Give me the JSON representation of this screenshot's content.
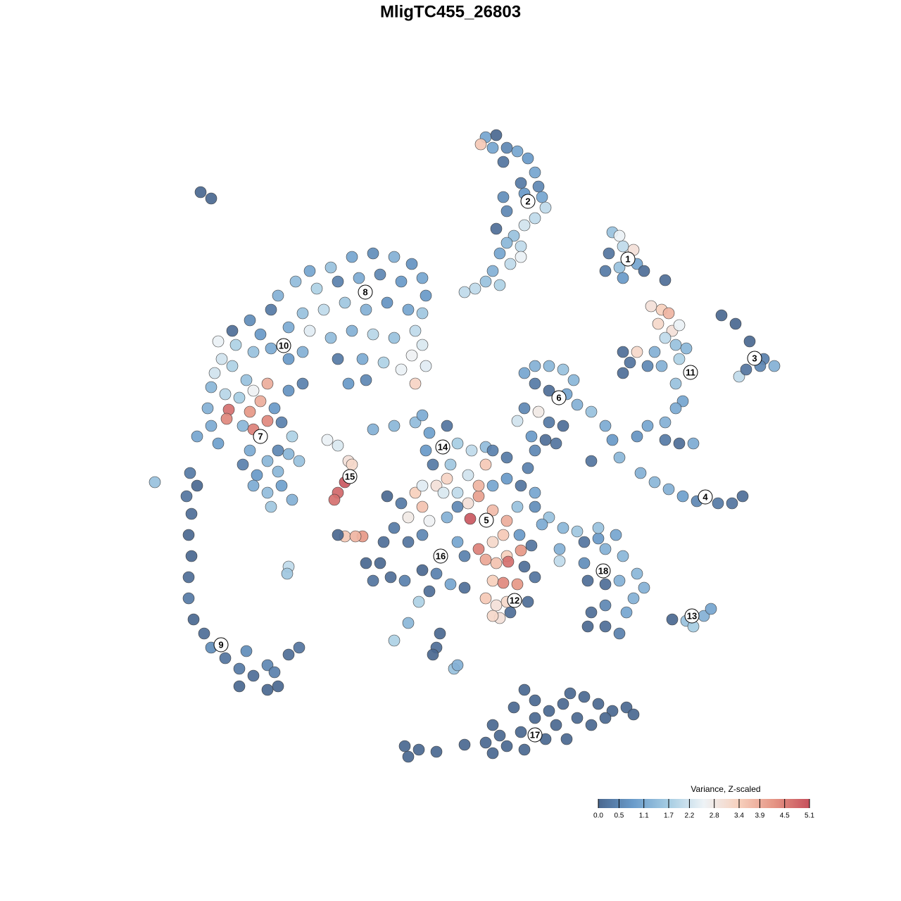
{
  "chart_data": {
    "type": "scatter",
    "title": "MligTC455_26803",
    "x": [
      69,
      70.5,
      70,
      68.3,
      72,
      73.5,
      75,
      76,
      76.5,
      74,
      74.5,
      77,
      77.5,
      76,
      74.5,
      73,
      74,
      72,
      71,
      72.5,
      70,
      69,
      71,
      67.5,
      66,
      72,
      71.5,
      74,
      71.5,
      70.5,
      87,
      88,
      88.5,
      90,
      86.5,
      88,
      90.5,
      86,
      88.5,
      91.5,
      94.5,
      92.5,
      94,
      95,
      93.5,
      95.5,
      96.5,
      94.5,
      96,
      97.5,
      93,
      90.5,
      88.5,
      89.5,
      92,
      94,
      96.5,
      96,
      97,
      96,
      94.5,
      92,
      90.5,
      94.5,
      96.5,
      98.5,
      88.5,
      102.5,
      104.5,
      106.5,
      108.5,
      110,
      105,
      106,
      108,
      74.5,
      76,
      78,
      80,
      81.5,
      76,
      78,
      80.5,
      82,
      84,
      76.5,
      74.5,
      73.5,
      78,
      80,
      77.5,
      75.5,
      79,
      76,
      75,
      86,
      87,
      88,
      84,
      91,
      93,
      95,
      97,
      99,
      102,
      104,
      105.5,
      47,
      50,
      53,
      56,
      58.5,
      60,
      60.5,
      60,
      44,
      42,
      39.5,
      45,
      48,
      51,
      54,
      57,
      46,
      49,
      52,
      55,
      58,
      43,
      41,
      38.5,
      35.5,
      37,
      44,
      47,
      50,
      53,
      56,
      59,
      60,
      58.5,
      60.5,
      57,
      59,
      54.5,
      51.5,
      48,
      49.5,
      52,
      43,
      41,
      33,
      31,
      33.5,
      36,
      38.5,
      31.5,
      30.5,
      33,
      35,
      30,
      32,
      34,
      36,
      37,
      35.5,
      38,
      32.5,
      32.2,
      38,
      29.5,
      30,
      28,
      31,
      34.5,
      36,
      39,
      40,
      39.5,
      35.5,
      38,
      41,
      42.5,
      34.5,
      36.5,
      39.5,
      36,
      38,
      40,
      41.5,
      38.5,
      41,
      43,
      41.5,
      27,
      28,
      26.5,
      27.2,
      26.8,
      27.2,
      26.8,
      26.8,
      27.5,
      29,
      30,
      32,
      34,
      36,
      34,
      38,
      39.5,
      39,
      41,
      42.5,
      38,
      35,
      22,
      41,
      40.8,
      28.5,
      30,
      46.5,
      48,
      49.5,
      50,
      49,
      48,
      47.5,
      49,
      48,
      51.5,
      50.5,
      53,
      56,
      59,
      60,
      61,
      63.5,
      65,
      67,
      69,
      60.5,
      61.5,
      64,
      66.5,
      69,
      70,
      72,
      59,
      60,
      62,
      63.5,
      65,
      66.5,
      68,
      70,
      72,
      71.5,
      70,
      68,
      69,
      70.5,
      72,
      74,
      72.2,
      66.8,
      65,
      63.5,
      61,
      58,
      55,
      57,
      56,
      54.5,
      58,
      60,
      62.5,
      65,
      66,
      54,
      52,
      53,
      55.5,
      57.5,
      60,
      62,
      64,
      61,
      59.5,
      58,
      56,
      62.5,
      62,
      61.5,
      64.5,
      65,
      66,
      70,
      71.5,
      73.5,
      69,
      70.5,
      72,
      71,
      70,
      75,
      74.5,
      76,
      72.5,
      68,
      70,
      72,
      74,
      73.5,
      76,
      78,
      77,
      80,
      82,
      79.5,
      79.5,
      73.8,
      76,
      75.5,
      63,
      60,
      83,
      85,
      86,
      87.5,
      88.5,
      83,
      83.5,
      86,
      88,
      90.5,
      91.5,
      90,
      89,
      86,
      84,
      83.5,
      86,
      88,
      85,
      95.5,
      97.5,
      98.5,
      100,
      101,
      57.5,
      59.5,
      62,
      58,
      66,
      69,
      70,
      72,
      74,
      76,
      74.5,
      76,
      78,
      79,
      80.5,
      82,
      84,
      85,
      83,
      81,
      87,
      89,
      90,
      71,
      73,
      77.5,
      74.5,
      80,
      86,
      70
    ],
    "y": [
      -19.5,
      -19.2,
      -21,
      -20.5,
      -21,
      -21.5,
      -22.5,
      -24.5,
      -26.5,
      -26,
      -27.5,
      -28,
      -29.5,
      -31,
      -32,
      -33.5,
      -35,
      -34.5,
      -36,
      -37.5,
      -38.5,
      -40,
      -40.5,
      -41,
      -41.5,
      -30,
      -23,
      -36.5,
      -28,
      -32.5,
      -33,
      -33.5,
      -35,
      -35.5,
      -36,
      -38,
      -37.5,
      -38.5,
      -39.5,
      -38.5,
      -39.8,
      -43.5,
      -44,
      -44.5,
      -46,
      -47,
      -46.2,
      -48,
      -49,
      -49.5,
      -50,
      -50,
      -50,
      -51.5,
      -52,
      -52,
      -51,
      -54.5,
      -57,
      -58,
      -60,
      -60.5,
      -62,
      -62.5,
      -63,
      -63,
      -53,
      -44.8,
      -46,
      -48.5,
      -51,
      -52,
      -53.5,
      -52.5,
      -52,
      -53,
      -52,
      -52,
      -52.5,
      -54,
      -54.5,
      -55.5,
      -56,
      -57.5,
      -58.5,
      -58.5,
      -58,
      -59.8,
      -60,
      -60.5,
      -62.5,
      -62,
      -63,
      -64,
      -66.5,
      -60.5,
      -62.5,
      -65,
      -65.5,
      -67.2,
      -68.5,
      -69.5,
      -70.5,
      -71.2,
      -71.5,
      -71.5,
      -70.5,
      -38,
      -36.5,
      -36,
      -36.5,
      -37.5,
      -39.5,
      -42,
      -44.5,
      -38.5,
      -40,
      -42,
      -41,
      -40,
      -39.5,
      -39,
      -40,
      -44,
      -43,
      -44,
      -43,
      -44,
      -44.5,
      -46.5,
      -44,
      -45.5,
      -47.5,
      -47,
      -48,
      -47,
      -47.5,
      -48,
      -47,
      -49,
      -50.5,
      -52,
      -52.5,
      -54.5,
      -51.5,
      -51,
      -51,
      -54.5,
      -54,
      -50,
      -51,
      -47,
      -48.5,
      -49,
      -50,
      -49.5,
      -51,
      -53,
      -52,
      -54,
      -55,
      -56,
      -56.5,
      -55.5,
      -57,
      -58.5,
      -54.5,
      -58.2,
      -59.5,
      -59.8,
      -58,
      -60.5,
      -62,
      -63,
      -60.5,
      -61,
      -58,
      -60,
      -64,
      -64,
      -65.5,
      -64.5,
      -65.5,
      -66,
      -67.5,
      -67,
      -69,
      -70,
      -69,
      -71,
      -72,
      -55.5,
      -54.5,
      -62,
      -67.2,
      -69,
      -70.5,
      -73,
      -76,
      -79,
      -82,
      -85,
      -88,
      -90,
      -92,
      -93.5,
      -95,
      -96,
      -97.5,
      -94.5,
      -97.5,
      -95.5,
      -93,
      -92,
      -98,
      -92.5,
      -68.5,
      -80.5,
      -81.5,
      -27.3,
      -28.2,
      -62.5,
      -63.3,
      -65.5,
      -66,
      -68.5,
      -70,
      -71,
      -76.2,
      -76,
      -76.2,
      -76.2,
      -61,
      -60.5,
      -60,
      -59,
      -61.5,
      -60.5,
      -63,
      -64,
      -63.5,
      -64,
      -66,
      -66,
      -67.5,
      -66,
      -64,
      -65,
      -70,
      -72,
      -69,
      -68,
      -70,
      -71.5,
      -70.5,
      -72.5,
      -74,
      -76,
      -77,
      -78,
      -79.5,
      -80,
      -79,
      -78.2,
      -79.8,
      -73.7,
      -72,
      -73.5,
      -74,
      -73.5,
      -70.5,
      -71.5,
      -75,
      -77,
      -77,
      -76,
      -79,
      -77,
      -79,
      -80,
      -80,
      -82.5,
      -82,
      -82.5,
      -81,
      -81.5,
      -83,
      -84,
      -85.5,
      -88.5,
      -91,
      -90,
      -92,
      -93,
      -95,
      -94.5,
      -83.5,
      -82.5,
      -82.8,
      -83,
      -85,
      -86,
      -85.5,
      -87.8,
      -87.5,
      -85.5,
      -80.5,
      -82,
      -87,
      -69,
      -69,
      -68,
      -69,
      -72,
      -72,
      -73.5,
      -74.5,
      -75,
      -75.5,
      -78,
      -79.7,
      -76,
      -70,
      -77.5,
      -70,
      -69,
      -77,
      -76.5,
      -78,
      -76,
      -79,
      -80,
      -82.5,
      -83,
      -82.5,
      -81.5,
      -83.5,
      -85,
      -87,
      -86,
      -87,
      -89,
      -89,
      -90,
      -75,
      -88,
      -88.2,
      -89,
      -87.5,
      -86.5,
      -106,
      -106.5,
      -106.8,
      -107.5,
      -105.8,
      -105.5,
      -107,
      -106,
      -104,
      -102,
      -98,
      -99.5,
      -101,
      -103,
      -105,
      -102,
      -103,
      -100,
      -99,
      -98.5,
      -101,
      -100.5,
      -101.5,
      -104.5,
      -100.5,
      -105,
      -106.5,
      -100,
      -102,
      -103
    ],
    "values": [
      1,
      0,
      1,
      3.5,
      0.5,
      1,
      0.8,
      1,
      0.5,
      0.3,
      0.8,
      1,
      2,
      2,
      2.2,
      1.5,
      2,
      1.3,
      1,
      2,
      1.2,
      1.5,
      1.8,
      2,
      2,
      0.5,
      0.2,
      2.5,
      0.6,
      0.1,
      1.5,
      2.5,
      2,
      3,
      0.2,
      1.5,
      1,
      0.3,
      0.8,
      0.1,
      0.1,
      3,
      3.4,
      3.8,
      3.2,
      3,
      2.5,
      2,
      1.5,
      1.3,
      1.2,
      3.2,
      0.1,
      0.2,
      0.5,
      1.2,
      1.8,
      1.5,
      1,
      1.1,
      1.2,
      1,
      0.7,
      0.3,
      0.1,
      1.1,
      0.1,
      0,
      0,
      0,
      0.4,
      1.2,
      2,
      0.2,
      0.5,
      1,
      1.2,
      1.3,
      1.5,
      1.3,
      0.3,
      0.1,
      1,
      1.2,
      1.5,
      2.8,
      0.5,
      2.2,
      0.3,
      0.1,
      0.1,
      0.8,
      0.2,
      0.5,
      0.4,
      1.1,
      0.8,
      1.3,
      0.2,
      1.2,
      1.3,
      1.2,
      0.9,
      0.5,
      0.3,
      0.2,
      0.1,
      1.5,
      1,
      0.6,
      1.2,
      0.7,
      1,
      0.8,
      1.6,
      1,
      1.4,
      1.2,
      1.8,
      0.4,
      1.1,
      0.5,
      0.8,
      2,
      1.6,
      1.2,
      0.7,
      1,
      1.5,
      1.1,
      0.3,
      0.6,
      0.8,
      2.4,
      1.4,
      1.2,
      1.9,
      1.5,
      2,
      2.3,
      2.6,
      2.4,
      2.5,
      3.3,
      1.8,
      1.1,
      0.3,
      0.8,
      0.5,
      1.2,
      0.8,
      0.1,
      2.5,
      1.8,
      1.5,
      1.1,
      2.2,
      2.2,
      1.8,
      1.5,
      1.3,
      1.9,
      1.7,
      2.6,
      3.9,
      4.2,
      3.9,
      4.7,
      4.4,
      4.4,
      1.2,
      1.1,
      1,
      0.9,
      1.3,
      4.5,
      0.8,
      0.4,
      0.5,
      1.1,
      1.3,
      1.3,
      1.5,
      0.4,
      0.8,
      1.3,
      1.1,
      1.4,
      0.9,
      1.2,
      1.6,
      0.7,
      0.4,
      1.8,
      0.3,
      0,
      0.2,
      0.1,
      0,
      0,
      0.1,
      0.3,
      0,
      0.1,
      0.6,
      0.2,
      0.3,
      0.1,
      0,
      0.5,
      0,
      0.4,
      0.1,
      0.2,
      0,
      0.6,
      1.5,
      2,
      1.6,
      0,
      0,
      2.5,
      2.3,
      3,
      3.2,
      5,
      4.8,
      4.7,
      3.5,
      0,
      4.2,
      3.8,
      1.2,
      1.3,
      1.4,
      1.1,
      0.9,
      0.2,
      1.7,
      2,
      1.4,
      0.8,
      0.3,
      1.6,
      2.2,
      3.5,
      0.4,
      0.3,
      3.4,
      3.6,
      3,
      3.3,
      2,
      3,
      4.1,
      3.7,
      3.9,
      3.5,
      3.2,
      4.5,
      4,
      3.6,
      3.4,
      4.2,
      4.7,
      5,
      0.5,
      1.2,
      2.6,
      2.8,
      0,
      0.3,
      0.3,
      0.1,
      0.2,
      0.5,
      0.3,
      1,
      0.4,
      0,
      0,
      0.2,
      0.1,
      0.4,
      0,
      0.4,
      1,
      0.1,
      1.8,
      1.3,
      1.8,
      0,
      0.1,
      0,
      1.5,
      1.2,
      0.1,
      3.4,
      4.4,
      4.2,
      3.5,
      3,
      3.2,
      3,
      3.2,
      0.1,
      0.1,
      0.2,
      0.1,
      3.8,
      1,
      0.8,
      0.2,
      1.5,
      0.6,
      1.5,
      1.1,
      1.3,
      1.6,
      1.2,
      2,
      0.8,
      1,
      0.2,
      2.3,
      2.4,
      0.2,
      0.8,
      1.2,
      1,
      1.3,
      0.6,
      0.1,
      0.1,
      1.2,
      1.3,
      1.2,
      1.2,
      1,
      0.5,
      0.1,
      0,
      0.1,
      0.4,
      1.5,
      0,
      1.5,
      1.7,
      1.2,
      1,
      0,
      0,
      0,
      0,
      0,
      0,
      0,
      0,
      0,
      0,
      0,
      0,
      0,
      0,
      0,
      0,
      0,
      0,
      0,
      0,
      0,
      0,
      0,
      0,
      0,
      0,
      0,
      0,
      0,
      0
    ],
    "cluster_labels": [
      {
        "label": "1",
        "x": 89.2,
        "y": -36.8
      },
      {
        "label": "2",
        "x": 75,
        "y": -28.6
      },
      {
        "label": "3",
        "x": 107.2,
        "y": -50.9
      },
      {
        "label": "4",
        "x": 100.2,
        "y": -70.6
      },
      {
        "label": "5",
        "x": 69.1,
        "y": -73.9
      },
      {
        "label": "6",
        "x": 79.4,
        "y": -56.5
      },
      {
        "label": "7",
        "x": 37,
        "y": -62
      },
      {
        "label": "8",
        "x": 51.9,
        "y": -41.5
      },
      {
        "label": "9",
        "x": 31.4,
        "y": -91.6
      },
      {
        "label": "10",
        "x": 40.3,
        "y": -49.1
      },
      {
        "label": "11",
        "x": 98.1,
        "y": -52.9
      },
      {
        "label": "12",
        "x": 73.1,
        "y": -85.3
      },
      {
        "label": "13",
        "x": 98.3,
        "y": -87.5
      },
      {
        "label": "14",
        "x": 62.9,
        "y": -63.5
      },
      {
        "label": "15",
        "x": 49.7,
        "y": -67.7
      },
      {
        "label": "16",
        "x": 62.6,
        "y": -79
      },
      {
        "label": "17",
        "x": 76,
        "y": -104.4
      },
      {
        "label": "18",
        "x": 85.7,
        "y": -81.1
      }
    ],
    "colorbar": {
      "title": "Variance, Z-scaled",
      "clim": [
        0,
        5.1
      ],
      "colormap": [
        "#4a6890",
        "#6a9ccb",
        "#a6cde3",
        "#eef3f6",
        "#f7d0bd",
        "#e59484",
        "#c6505c"
      ],
      "ticks": [
        {
          "value": 0,
          "label": "0.0"
        },
        0.5,
        1.1,
        1.7,
        2.2,
        2.8,
        3.4,
        3.9,
        4.5,
        5.1
      ]
    }
  }
}
